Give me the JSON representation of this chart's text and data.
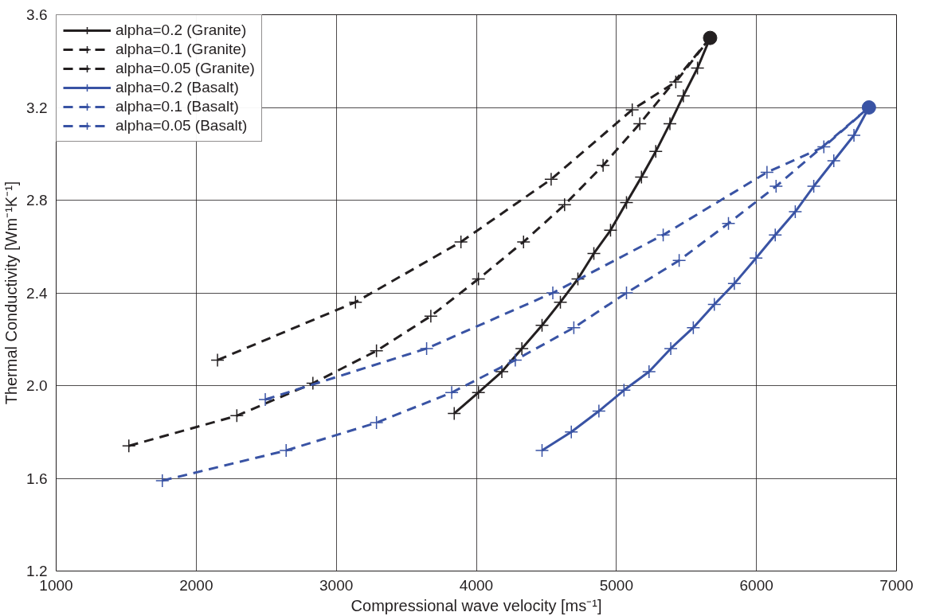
{
  "chart_data": {
    "type": "line",
    "xlabel": "Compressional wave velocity [ms⁻¹]",
    "ylabel": "Thermal Conductivity [Wm⁻¹K⁻¹]",
    "xlim": [
      1000,
      7000
    ],
    "xticks": [
      1000,
      2000,
      3000,
      4000,
      5000,
      6000,
      7000
    ],
    "ylim": [
      1.2,
      3.6
    ],
    "yticks": [
      1.2,
      1.6,
      {
        "value": 2.0,
        "label": "2.0"
      },
      2.4,
      2.8,
      3.2,
      3.6
    ],
    "grid": true,
    "legend": "top left",
    "marker": "cross",
    "series": [
      {
        "name": "alpha=0.2 (Granite)",
        "color": "#231f20",
        "line_style": "solid",
        "x": [
          3842,
          4015,
          4182,
          4325,
          4469,
          4600,
          4725,
          4839,
          4958,
          5072,
          5179,
          5281,
          5382,
          5478,
          5579,
          5669
        ],
        "values": [
          1.88,
          1.97,
          2.06,
          2.16,
          2.26,
          2.36,
          2.46,
          2.57,
          2.67,
          2.79,
          2.9,
          3.01,
          3.13,
          3.25,
          3.37,
          3.5
        ]
      },
      {
        "name": "alpha=0.1 (Granite)",
        "color": "#231f20",
        "line_style": "dashed",
        "x": [
          1519,
          2290,
          2833,
          3287,
          3675,
          4015,
          4337,
          4630,
          4905,
          5167,
          5669
        ],
        "values": [
          1.74,
          1.87,
          2.01,
          2.15,
          2.3,
          2.46,
          2.62,
          2.78,
          2.95,
          3.13,
          3.5
        ]
      },
      {
        "name": "alpha=0.05 (Granite)",
        "color": "#231f20",
        "line_style": "dashed",
        "x": [
          2152,
          3137,
          3890,
          4534,
          5113,
          5424,
          5669
        ],
        "values": [
          2.11,
          2.36,
          2.62,
          2.89,
          3.19,
          3.31,
          3.5
        ]
      },
      {
        "name": "alpha=0.2 (Basalt)",
        "color": "#3953a4",
        "line_style": "solid",
        "x": [
          4469,
          4678,
          4875,
          5054,
          5233,
          5388,
          5549,
          5699,
          5842,
          5997,
          6134,
          6277,
          6409,
          6552,
          6696,
          6803
        ],
        "values": [
          1.72,
          1.8,
          1.89,
          1.98,
          2.06,
          2.16,
          2.25,
          2.35,
          2.44,
          2.55,
          2.65,
          2.75,
          2.86,
          2.97,
          3.08,
          3.2
        ]
      },
      {
        "name": "alpha=0.1 (Basalt)",
        "color": "#3953a4",
        "line_style": "dashed",
        "x": [
          1758,
          2642,
          3287,
          3824,
          4278,
          4696,
          5072,
          5448,
          5800,
          6140,
          6803
        ],
        "values": [
          1.59,
          1.72,
          1.84,
          1.97,
          2.11,
          2.25,
          2.4,
          2.54,
          2.7,
          2.86,
          3.2
        ]
      },
      {
        "name": "alpha=0.05 (Basalt)",
        "color": "#3953a4",
        "line_style": "dashed",
        "x": [
          2493,
          3645,
          4546,
          5334,
          6075,
          6481,
          6803
        ],
        "values": [
          1.94,
          2.16,
          2.4,
          2.65,
          2.92,
          3.03,
          3.2
        ]
      },
      {
        "type": "scatter",
        "marker": "circle",
        "color": "#231f20",
        "x": [
          5669
        ],
        "values": [
          3.5
        ]
      },
      {
        "type": "scatter",
        "marker": "circle",
        "color": "#3953a4",
        "x": [
          6803
        ],
        "values": [
          3.2
        ]
      }
    ]
  }
}
